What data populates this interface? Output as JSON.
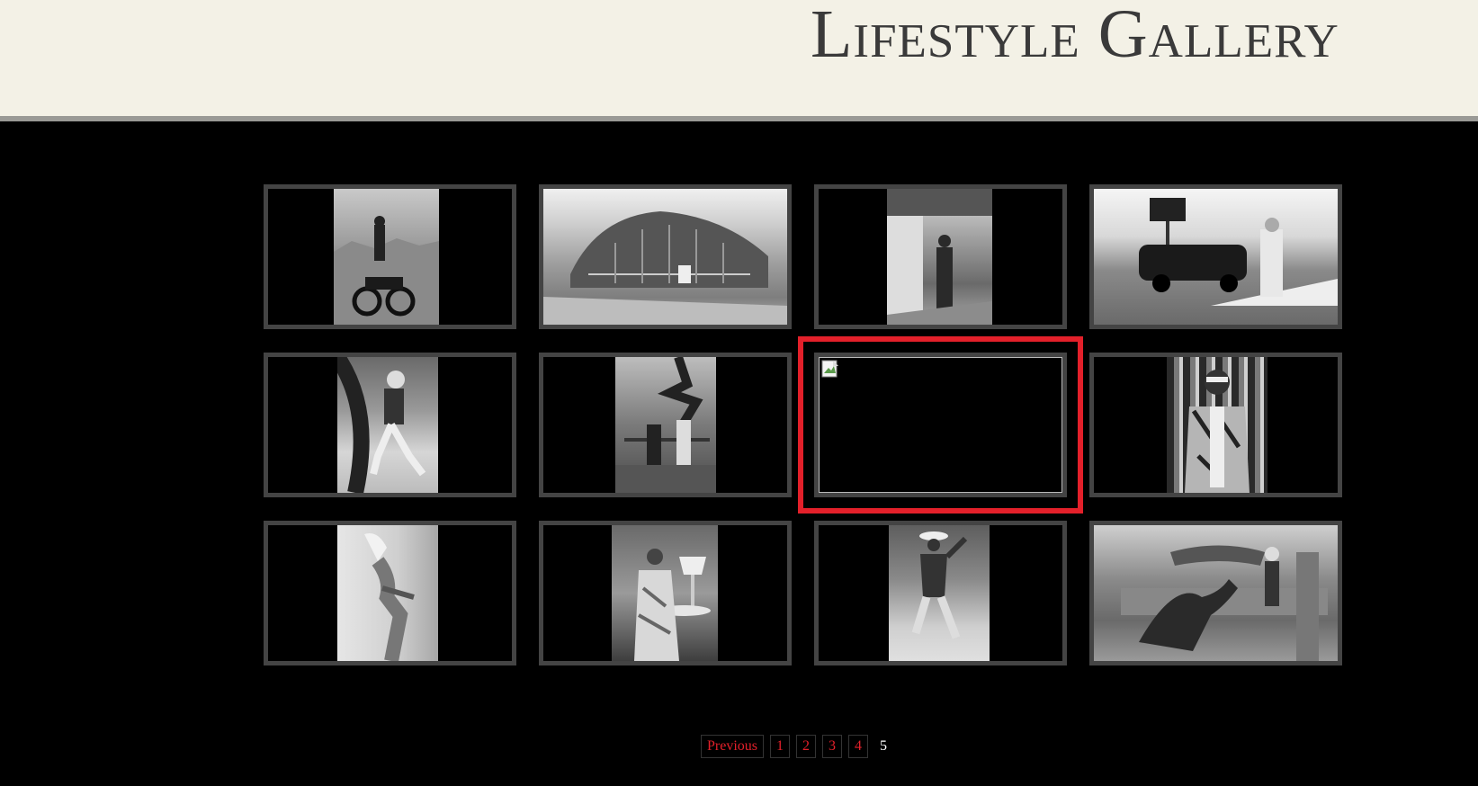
{
  "header": {
    "title": "Lifestyle Gallery"
  },
  "gallery": {
    "tiles": [
      {
        "alt": "",
        "kind": "photo"
      },
      {
        "alt": "",
        "kind": "photo"
      },
      {
        "alt": "",
        "kind": "photo"
      },
      {
        "alt": "",
        "kind": "photo"
      },
      {
        "alt": "",
        "kind": "photo"
      },
      {
        "alt": "",
        "kind": "photo"
      },
      {
        "alt": "",
        "kind": "broken-image"
      },
      {
        "alt": "",
        "kind": "photo"
      },
      {
        "alt": "",
        "kind": "photo"
      },
      {
        "alt": "",
        "kind": "photo"
      },
      {
        "alt": "",
        "kind": "photo"
      },
      {
        "alt": "",
        "kind": "photo"
      }
    ]
  },
  "pagination": {
    "previous_label": "Previous",
    "pages": [
      "1",
      "2",
      "3",
      "4"
    ],
    "current": "5"
  },
  "colors": {
    "header_bg": "#f3f1e6",
    "accent": "#e3202a",
    "tile_border": "#444444"
  }
}
